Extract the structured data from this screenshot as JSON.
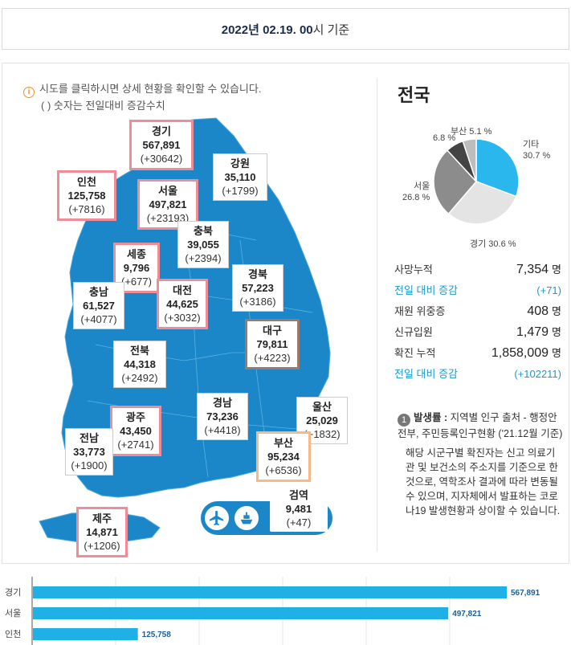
{
  "header": {
    "date_bold": "2022년 02.19. 00",
    "date_suffix": "시 기준"
  },
  "notice": {
    "line1": "시도를 클릭하시면 상세 현황을 확인할 수 있습니다.",
    "line2": "( ) 숫자는 전일대비 증감수치",
    "icon": "info-icon"
  },
  "regions": {
    "gyeonggi": {
      "name": "경기",
      "count": "567,891",
      "diff": "(+30642)"
    },
    "gangwon": {
      "name": "강원",
      "count": "35,110",
      "diff": "(+1799)"
    },
    "incheon": {
      "name": "인천",
      "count": "125,758",
      "diff": "(+7816)"
    },
    "seoul": {
      "name": "서울",
      "count": "497,821",
      "diff": "(+23193)"
    },
    "chungbuk": {
      "name": "충북",
      "count": "39,055",
      "diff": "(+2394)"
    },
    "sejong": {
      "name": "세종",
      "count": "9,796",
      "diff": "(+677)"
    },
    "gyeongbuk": {
      "name": "경북",
      "count": "57,223",
      "diff": "(+3186)"
    },
    "chungnam": {
      "name": "충남",
      "count": "61,527",
      "diff": "(+4077)"
    },
    "daejeon": {
      "name": "대전",
      "count": "44,625",
      "diff": "(+3032)"
    },
    "daegu": {
      "name": "대구",
      "count": "79,811",
      "diff": "(+4223)"
    },
    "jeonbuk": {
      "name": "전북",
      "count": "44,318",
      "diff": "(+2492)"
    },
    "gyeongnam": {
      "name": "경남",
      "count": "73,236",
      "diff": "(+4418)"
    },
    "ulsan": {
      "name": "울산",
      "count": "25,029",
      "diff": "(+1832)"
    },
    "gwangju": {
      "name": "광주",
      "count": "43,450",
      "diff": "(+2741)"
    },
    "jeonnam": {
      "name": "전남",
      "count": "33,773",
      "diff": "(+1900)"
    },
    "busan": {
      "name": "부산",
      "count": "95,234",
      "diff": "(+6536)"
    },
    "quarantine": {
      "name": "검역",
      "count": "9,481",
      "diff": "(+47)"
    },
    "jeju": {
      "name": "제주",
      "count": "14,871",
      "diff": "(+1206)"
    }
  },
  "national": {
    "title": "전국",
    "pie": {
      "slices": [
        {
          "name": "기타",
          "pct": 30.7,
          "label": "기타",
          "pct_label": "30.7 %",
          "color": "#2ab7ee"
        },
        {
          "name": "경기",
          "pct": 30.6,
          "label": "경기 30.6 %",
          "color": "#e4e4e4"
        },
        {
          "name": "서울",
          "pct": 26.8,
          "label": "서울",
          "pct_label": "26.8 %",
          "color": "#8c8c8c"
        },
        {
          "name": "인천",
          "pct": 6.8,
          "label": "6.8 %",
          "color": "#444444"
        },
        {
          "name": "부산",
          "pct": 5.1,
          "label": "부산 5.1 %",
          "color": "#bdbdbd"
        }
      ]
    },
    "stats": [
      {
        "label": "사망누적",
        "value": "7,354",
        "unit": "명"
      },
      {
        "label": "전일 대비 증감",
        "value": "(+71)",
        "sub": true
      },
      {
        "label": "재원 위중증",
        "value": "408",
        "unit": "명"
      },
      {
        "label": "신규입원",
        "value": "1,479",
        "unit": "명"
      },
      {
        "label": "확진 누적",
        "value": "1,858,009",
        "unit": "명"
      },
      {
        "label": "전일 대비 증감",
        "value": "(+102211)",
        "sub": true
      }
    ],
    "footnote": {
      "num": "1",
      "title": "발생률 :",
      "p1": "지역별 인구 출처 - 행정안전부, 주민등록인구현황 ('21.12월 기준)",
      "p2": "해당 시군구별 확진자는 신고 의료기관 및 보건소의 주소지를 기준으로 한 것으로, 역학조사 결과에 따라 변동될 수 있으며, 지자체에서 발표하는 코로나19 발생현황과 상이할 수 있습니다."
    }
  },
  "chart_data": {
    "type": "bar",
    "orientation": "horizontal",
    "categories": [
      "경기",
      "서울",
      "인천"
    ],
    "values": [
      567891,
      497821,
      125758
    ],
    "value_labels": [
      "567,891",
      "497,821",
      "125,758"
    ],
    "color": "#1fb1e6"
  }
}
